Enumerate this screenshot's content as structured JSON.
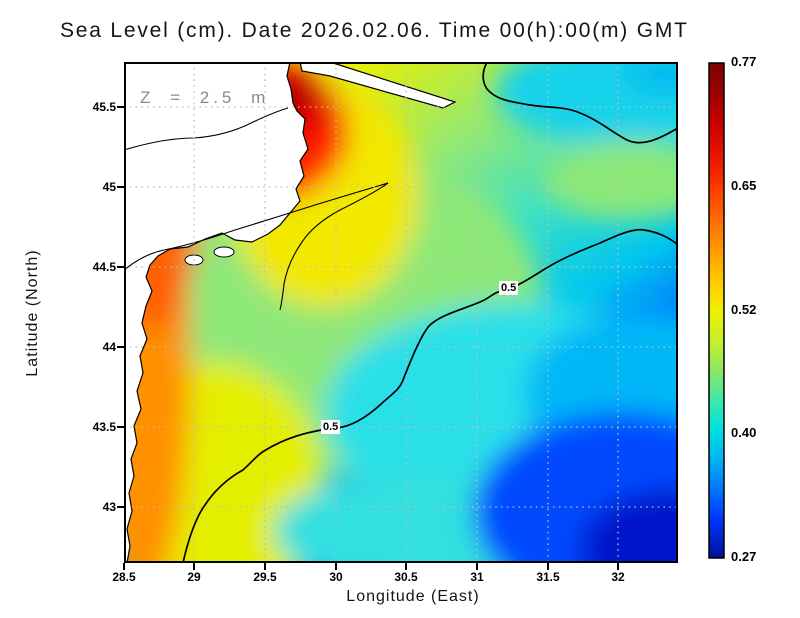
{
  "title": "Sea Level (cm). Date 2026.02.06. Time 00(h):00(m) GMT",
  "annotation": {
    "depth_label": "Z = 2.5 m"
  },
  "axes": {
    "x": {
      "label": "Longitude (East)",
      "ticks": [
        "28.5",
        "29",
        "29.5",
        "30",
        "30.5",
        "31",
        "31.5",
        "32"
      ]
    },
    "y": {
      "label": "Latitude (North)",
      "ticks": [
        "45.5",
        "45",
        "44.5",
        "44",
        "43.5",
        "43"
      ]
    }
  },
  "colorbar": {
    "ticks": [
      "0.77",
      "0.65",
      "0.52",
      "0.40",
      "0.27"
    ]
  },
  "contour": {
    "labels": [
      "0.5",
      "0.5"
    ]
  },
  "chart_data": {
    "type": "heatmap",
    "title": "Sea Level (cm). Date 2026.02.06. Time 00(h):00(m) GMT",
    "xlabel": "Longitude (East)",
    "ylabel": "Latitude (North)",
    "xlim": [
      28.5,
      32.43
    ],
    "ylim": [
      42.65,
      45.78
    ],
    "grid": true,
    "annotation": "Z = 2.5 m",
    "contour_level": 0.5,
    "colorbar": {
      "min": 0.27,
      "max": 0.77,
      "tick_values": [
        0.77,
        0.65,
        0.52,
        0.4,
        0.27
      ],
      "colormap": "jet",
      "position": "right"
    },
    "hotspot": {
      "lon": 29.7,
      "lat": 45.6,
      "value": 0.77
    },
    "land": "white masked land with black coastline along west and northwest (Danube delta, Dniester liman, Odessa coast)",
    "sampled_field": {
      "note": "sea level values estimated from fill colors; null = land",
      "lons": [
        29.0,
        29.5,
        30.0,
        30.5,
        31.0,
        31.5,
        32.0,
        32.4
      ],
      "lats": [
        45.5,
        45.0,
        44.5,
        44.0,
        43.5,
        43.0
      ],
      "values": [
        [
          null,
          0.72,
          0.77,
          0.6,
          0.5,
          0.46,
          0.45,
          0.44
        ],
        [
          0.7,
          0.64,
          0.6,
          0.56,
          0.52,
          0.51,
          0.5,
          0.49
        ],
        [
          0.68,
          0.62,
          0.58,
          0.54,
          0.5,
          0.47,
          0.45,
          0.44
        ],
        [
          0.66,
          0.59,
          0.55,
          0.51,
          0.47,
          0.42,
          0.38,
          0.35
        ],
        [
          0.62,
          0.56,
          0.52,
          0.48,
          0.44,
          0.37,
          0.32,
          0.3
        ],
        [
          0.58,
          0.53,
          0.49,
          0.46,
          0.42,
          0.34,
          0.3,
          0.28
        ]
      ]
    }
  },
  "colors": {
    "land": "#ffffff",
    "coastline": "#000000",
    "grid_dots": "#c4bcbc",
    "annotation_grey": "#8a8a8a",
    "jet_low": "#000e96",
    "jet_high": "#7f0000"
  }
}
